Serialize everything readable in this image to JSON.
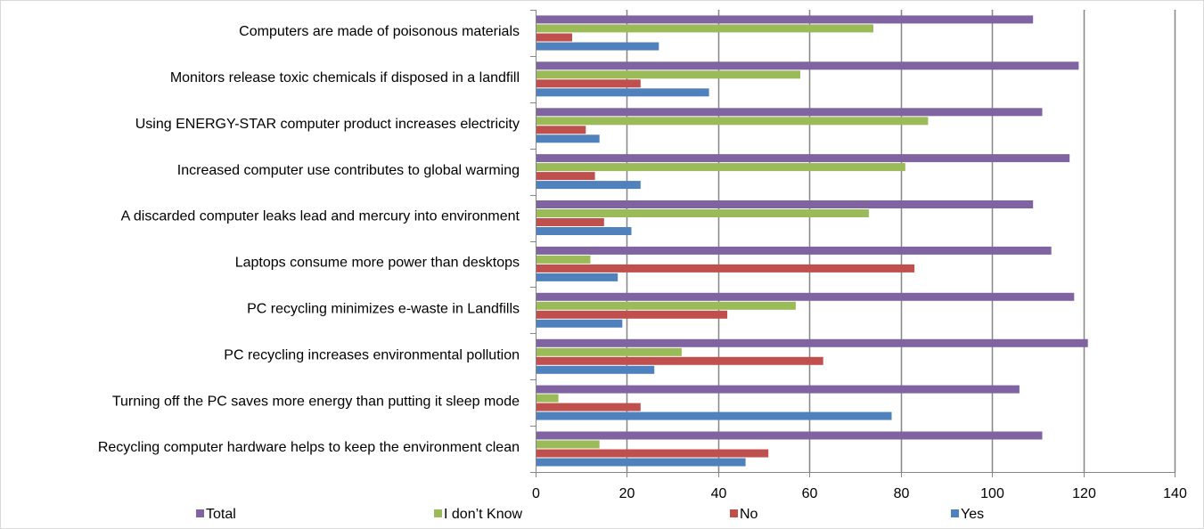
{
  "chart_data": {
    "type": "bar",
    "orientation": "horizontal",
    "categories": [
      "Computers are made of poisonous materials",
      "Monitors release toxic chemicals if disposed in a landfill",
      "Using ENERGY-STAR computer product increases electricity",
      "Increased computer use contributes to global warming",
      "A discarded computer leaks lead and mercury into environment",
      "Laptops consume more power than desktops",
      "PC recycling minimizes e-waste in Landfills",
      "PC recycling increases environmental pollution",
      "Turning off the PC saves more energy than putting it sleep mode",
      "Recycling computer hardware helps to keep the environment clean"
    ],
    "series": [
      {
        "name": "Total",
        "color": "#8064A2",
        "values": [
          109,
          119,
          111,
          117,
          109,
          113,
          118,
          121,
          106,
          111
        ]
      },
      {
        "name": "I don’t Know",
        "color": "#9BBB59",
        "values": [
          74,
          58,
          86,
          81,
          73,
          12,
          57,
          32,
          5,
          14
        ]
      },
      {
        "name": "No",
        "color": "#C0504D",
        "values": [
          8,
          23,
          11,
          13,
          15,
          83,
          42,
          63,
          23,
          51
        ]
      },
      {
        "name": "Yes",
        "color": "#4F81BD",
        "values": [
          27,
          38,
          14,
          23,
          21,
          18,
          19,
          26,
          78,
          46
        ]
      }
    ],
    "xlim": [
      0,
      140
    ],
    "xticks": [
      0,
      20,
      40,
      60,
      80,
      100,
      120,
      140
    ],
    "grid": true,
    "legend_position": "bottom",
    "title": "",
    "xlabel": "",
    "ylabel": ""
  }
}
